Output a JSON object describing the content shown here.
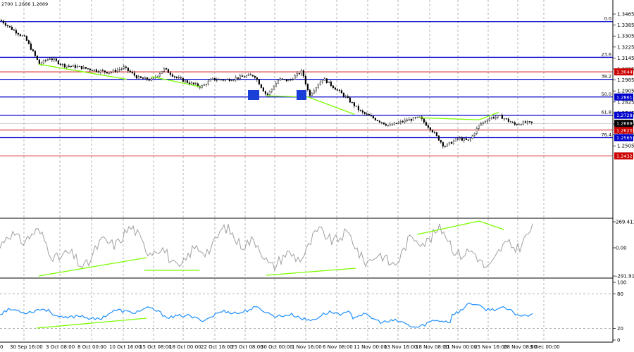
{
  "header": {
    "ohlc_text": "2700 1.2666 1.2669"
  },
  "main_panel": {
    "y_ticks": [
      "1.3465",
      "1.3385",
      "1.3305",
      "1.3225",
      "1.3145",
      "1.3065",
      "1.2985",
      "1.2905",
      "1.2825",
      "1.2745",
      "1.2665",
      "1.2585",
      "1.2505"
    ],
    "fib_levels": [
      {
        "ratio": "0.0",
        "price": 1.341,
        "color": "#0000cc",
        "badge": ""
      },
      {
        "ratio": "23.6",
        "price": 1.315,
        "color": "#0000cc",
        "badge": ""
      },
      {
        "ratio": "",
        "price": 1.3044,
        "color": "#cc0000",
        "badge": "1.3044"
      },
      {
        "ratio": "38.2",
        "price": 1.299,
        "color": "#0000cc",
        "badge": ""
      },
      {
        "ratio": "50.0",
        "price": 1.2861,
        "color": "#0000cc",
        "badge": "1.2861"
      },
      {
        "ratio": "61.8",
        "price": 1.2728,
        "color": "#0000cc",
        "badge": "1.2728"
      },
      {
        "ratio": "",
        "price": 1.262,
        "color": "#cc0000",
        "badge": "1.2620"
      },
      {
        "ratio": "76.4",
        "price": 1.2565,
        "color": "#0000cc",
        "badge": "1.2565"
      },
      {
        "ratio": "",
        "price": 1.2432,
        "color": "#cc0000",
        "badge": "1.2432"
      }
    ],
    "current_price": {
      "value": 1.2669,
      "badge": "1.2669"
    }
  },
  "cci_panel": {
    "y_ticks": [
      "269.4111",
      "0.00",
      "-291.9184"
    ]
  },
  "rsi_panel": {
    "y_ticks": [
      "100",
      "80",
      "20",
      "0"
    ]
  },
  "x_axis": {
    "labels": [
      "0",
      "30 Sep 16:00",
      "3 Oct 08:00",
      "8 Oct 00:00",
      "10 Oct 16:00",
      "15 Oct 08:00",
      "18 Oct 00:00",
      "22 Oct 16:00",
      "25 Oct 08:00",
      "30 Oct 00:00",
      "1 Nov 16:00",
      "6 Nov 08:00",
      "11 Nov 00:00",
      "13 Nov 16:00",
      "18 Nov 08:00",
      "21 Nov 00:00",
      "25 Nov 16:00",
      "28 Nov 08:00",
      "3 Dec 00:00"
    ]
  },
  "colors": {
    "candle": "#000000",
    "cci_line": "#a0a0a0",
    "rsi_line": "#1e90ff",
    "divergence": "#7cfc00",
    "fib_blue": "#0000cc",
    "level_red": "#cc0000",
    "marker": "#1a3fd6",
    "grid": "#808080"
  }
}
